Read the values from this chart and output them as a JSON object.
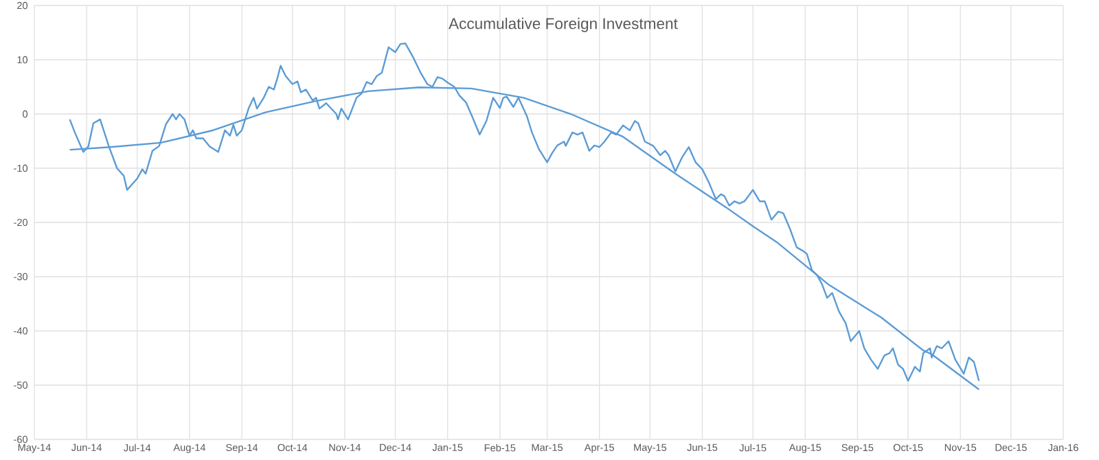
{
  "chart_data": {
    "type": "line",
    "title": "Accumulative Foreign Investment",
    "xlim": [
      "2014-05-01",
      "2016-01-01"
    ],
    "ylim": [
      -60,
      20
    ],
    "xticks": [
      {
        "value": "2014-05-01",
        "label": "May-14"
      },
      {
        "value": "2014-06-01",
        "label": "Jun-14"
      },
      {
        "value": "2014-07-01",
        "label": "Jul-14"
      },
      {
        "value": "2014-08-01",
        "label": "Aug-14"
      },
      {
        "value": "2014-09-01",
        "label": "Sep-14"
      },
      {
        "value": "2014-10-01",
        "label": "Oct-14"
      },
      {
        "value": "2014-11-01",
        "label": "Nov-14"
      },
      {
        "value": "2014-12-01",
        "label": "Dec-14"
      },
      {
        "value": "2015-01-01",
        "label": "Jan-15"
      },
      {
        "value": "2015-02-01",
        "label": "Feb-15"
      },
      {
        "value": "2015-03-01",
        "label": "Mar-15"
      },
      {
        "value": "2015-04-01",
        "label": "Apr-15"
      },
      {
        "value": "2015-05-01",
        "label": "May-15"
      },
      {
        "value": "2015-06-01",
        "label": "Jun-15"
      },
      {
        "value": "2015-07-01",
        "label": "Jul-15"
      },
      {
        "value": "2015-08-01",
        "label": "Aug-15"
      },
      {
        "value": "2015-09-01",
        "label": "Sep-15"
      },
      {
        "value": "2015-10-01",
        "label": "Oct-15"
      },
      {
        "value": "2015-11-01",
        "label": "Nov-15"
      },
      {
        "value": "2015-12-01",
        "label": "Dec-15"
      },
      {
        "value": "2016-01-01",
        "label": "Jan-16"
      }
    ],
    "yticks": [
      -60,
      -50,
      -40,
      -30,
      -20,
      -10,
      0,
      10,
      20
    ],
    "grid": true,
    "marker": "none",
    "line_style": "solid",
    "series": [
      {
        "color": "#5b9bd5",
        "x": [
          "2014-05-22",
          "2014-05-25",
          "2014-05-30",
          "2014-06-02",
          "2014-06-05",
          "2014-06-09",
          "2014-06-14",
          "2014-06-19",
          "2014-06-23",
          "2014-06-25",
          "2014-07-01",
          "2014-07-04",
          "2014-07-06",
          "2014-07-10",
          "2014-07-14",
          "2014-07-18",
          "2014-07-22",
          "2014-07-24",
          "2014-07-26",
          "2014-07-29",
          "2014-08-01",
          "2014-08-03",
          "2014-08-05",
          "2014-08-09",
          "2014-08-13",
          "2014-08-18",
          "2014-08-22",
          "2014-08-25",
          "2014-08-27",
          "2014-08-29",
          "2014-09-01",
          "2014-09-05",
          "2014-09-08",
          "2014-09-10",
          "2014-09-14",
          "2014-09-17",
          "2014-09-20",
          "2014-09-22",
          "2014-09-24",
          "2014-09-27",
          "2014-10-01",
          "2014-10-04",
          "2014-10-06",
          "2014-10-09",
          "2014-10-13",
          "2014-10-15",
          "2014-10-17",
          "2014-10-21",
          "2014-10-27",
          "2014-10-28",
          "2014-10-30",
          "2014-11-03",
          "2014-11-08",
          "2014-11-11",
          "2014-11-14",
          "2014-11-17",
          "2014-11-20",
          "2014-11-23",
          "2014-11-27",
          "2014-12-01",
          "2014-12-04",
          "2014-12-07",
          "2014-12-12",
          "2014-12-16",
          "2014-12-20",
          "2014-12-23",
          "2014-12-26",
          "2014-12-29",
          "2015-01-01",
          "2015-01-05",
          "2015-01-08",
          "2015-01-12",
          "2015-01-16",
          "2015-01-20",
          "2015-01-24",
          "2015-01-28",
          "2015-02-01",
          "2015-02-03",
          "2015-02-05",
          "2015-02-09",
          "2015-02-12",
          "2015-02-17",
          "2015-02-20",
          "2015-02-24",
          "2015-03-01",
          "2015-03-04",
          "2015-03-07",
          "2015-03-11",
          "2015-03-12",
          "2015-03-16",
          "2015-03-19",
          "2015-03-22",
          "2015-03-26",
          "2015-03-29",
          "2015-04-01",
          "2015-04-04",
          "2015-04-08",
          "2015-04-11",
          "2015-04-15",
          "2015-04-19",
          "2015-04-22",
          "2015-04-24",
          "2015-04-28",
          "2015-05-03",
          "2015-05-07",
          "2015-05-10",
          "2015-05-12",
          "2015-05-16",
          "2015-05-20",
          "2015-05-24",
          "2015-05-28",
          "2015-06-01",
          "2015-06-05",
          "2015-06-09",
          "2015-06-12",
          "2015-06-14",
          "2015-06-17",
          "2015-06-20",
          "2015-06-23",
          "2015-06-26",
          "2015-07-01",
          "2015-07-05",
          "2015-07-08",
          "2015-07-12",
          "2015-07-16",
          "2015-07-19",
          "2015-07-23",
          "2015-07-27",
          "2015-07-31",
          "2015-08-02",
          "2015-08-05",
          "2015-08-08",
          "2015-08-11",
          "2015-08-14",
          "2015-08-17",
          "2015-08-21",
          "2015-08-25",
          "2015-08-28",
          "2015-09-02",
          "2015-09-05",
          "2015-09-09",
          "2015-09-13",
          "2015-09-17",
          "2015-09-20",
          "2015-09-22",
          "2015-09-25",
          "2015-09-28",
          "2015-10-01",
          "2015-10-05",
          "2015-10-08",
          "2015-10-10",
          "2015-10-14",
          "2015-10-15",
          "2015-10-18",
          "2015-10-21",
          "2015-10-25",
          "2015-10-29",
          "2015-11-03",
          "2015-11-06",
          "2015-11-09",
          "2015-11-12"
        ],
        "values": [
          -1,
          -3.4,
          -7,
          -6,
          -1.7,
          -1,
          -5.8,
          -10,
          -11.4,
          -14,
          -11.9,
          -10.2,
          -11,
          -6.8,
          -5.9,
          -1.9,
          0,
          -1,
          0,
          -1,
          -4,
          -3,
          -4.5,
          -4.5,
          -6,
          -7,
          -3,
          -4,
          -2,
          -4,
          -3,
          1,
          3,
          1,
          3,
          5,
          4.5,
          6.5,
          8.9,
          7,
          5.5,
          6,
          4,
          4.5,
          2.5,
          3,
          1,
          2,
          0,
          -1,
          1,
          -1,
          3,
          3.8,
          5.9,
          5.5,
          7,
          7.6,
          12.3,
          11.4,
          12.9,
          13,
          10.2,
          7.6,
          5.5,
          5,
          6.8,
          6.5,
          5.8,
          5,
          3.4,
          2.1,
          -0.8,
          -3.8,
          -1.3,
          3,
          1.1,
          3,
          3.2,
          1.3,
          3,
          -0.4,
          -3.4,
          -6.4,
          -8.9,
          -7.2,
          -5.8,
          -5.1,
          -5.9,
          -3.4,
          -3.8,
          -3.4,
          -6.8,
          -5.8,
          -6.1,
          -5.1,
          -3.4,
          -3.8,
          -2.1,
          -3,
          -1.3,
          -1.7,
          -5.1,
          -5.9,
          -7.6,
          -6.8,
          -7.6,
          -10.6,
          -8,
          -6.1,
          -8.9,
          -10.2,
          -12.7,
          -15.7,
          -14.8,
          -15.1,
          -16.9,
          -16.1,
          -16.5,
          -16.1,
          -14,
          -16.1,
          -16.1,
          -19.5,
          -18,
          -18.3,
          -21.2,
          -24.6,
          -25.3,
          -25.8,
          -28.8,
          -29.7,
          -31.4,
          -33.9,
          -33,
          -36.4,
          -38.6,
          -41.9,
          -40,
          -43.2,
          -45.3,
          -47,
          -44.5,
          -44.1,
          -43.2,
          -46.2,
          -47,
          -49.2,
          -46.6,
          -47.5,
          -44.1,
          -43.2,
          -44.9,
          -42.8,
          -43.2,
          -41.9,
          -45.3,
          -47.9,
          -44.9,
          -45.7,
          -49.2
        ]
      },
      {
        "type": "line",
        "color": "#5b9bd5",
        "x": [
          "2014-05-22",
          "2014-06-15",
          "2014-07-15",
          "2014-08-15",
          "2014-09-15",
          "2014-10-15",
          "2014-11-15",
          "2014-12-15",
          "2015-01-15",
          "2015-02-15",
          "2015-03-15",
          "2015-04-15",
          "2015-05-15",
          "2015-06-15",
          "2015-07-01",
          "2015-07-15",
          "2015-08-08",
          "2015-08-15",
          "2015-09-15",
          "2015-10-10",
          "2015-10-15",
          "2015-11-12"
        ],
        "values": [
          -6.6,
          -6.1,
          -5.3,
          -3,
          0.3,
          2.4,
          4.2,
          4.9,
          4.7,
          3,
          0,
          -4.2,
          -10.8,
          -17.2,
          -20.7,
          -23.6,
          -29.7,
          -31.5,
          -37.5,
          -43.6,
          -44.3,
          -50.8
        ]
      }
    ]
  }
}
